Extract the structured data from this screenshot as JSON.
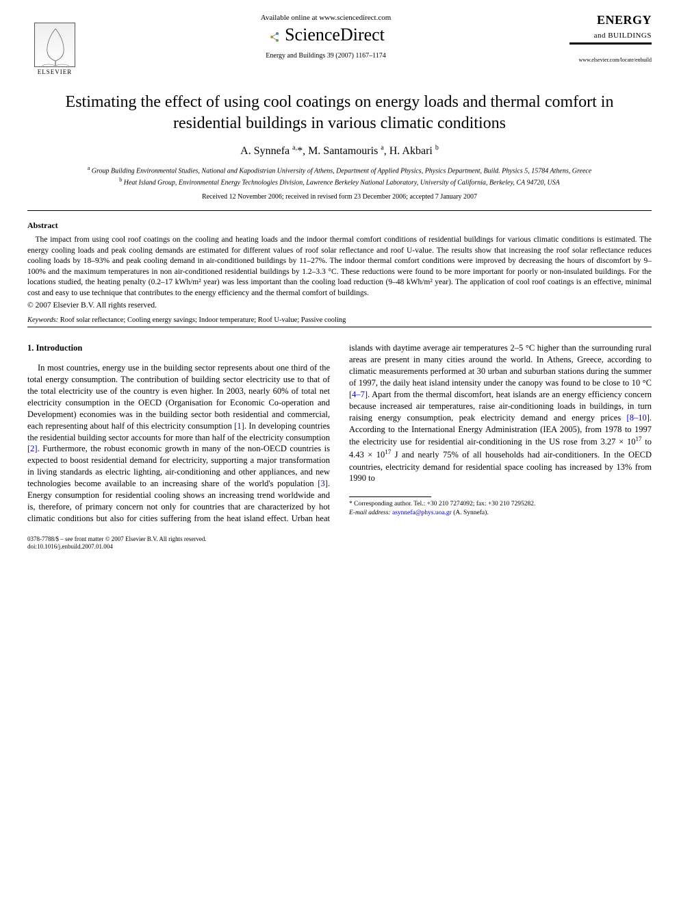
{
  "header": {
    "available_online": "Available online at www.sciencedirect.com",
    "sciencedirect": "ScienceDirect",
    "journal_ref": "Energy and Buildings 39 (2007) 1167–1174",
    "elsevier_label": "ELSEVIER",
    "journal_name_line1": "ENERGY",
    "journal_name_line2": "and BUILDINGS",
    "journal_url": "www.elsevier.com/locate/enbuild"
  },
  "title": "Estimating the effect of using cool coatings on energy loads and thermal comfort in residential buildings in various climatic conditions",
  "authors_html": "A. Synnefa <sup>a,</sup>*, M. Santamouris <sup>a</sup>, H. Akbari <sup>b</sup>",
  "affiliations": {
    "a": "Group Building Environmental Studies, National and Kapodistrian University of Athens, Department of Applied Physics, Physics Department, Build. Physics 5, 15784 Athens, Greece",
    "b": "Heat Island Group, Environmental Energy Technologies Division, Lawrence Berkeley National Laboratory, University of California, Berkeley, CA 94720, USA"
  },
  "dates": "Received 12 November 2006; received in revised form 23 December 2006; accepted 7 January 2007",
  "abstract": {
    "heading": "Abstract",
    "body": "The impact from using cool roof coatings on the cooling and heating loads and the indoor thermal comfort conditions of residential buildings for various climatic conditions is estimated. The energy cooling loads and peak cooling demands are estimated for different values of roof solar reflectance and roof U-value. The results show that increasing the roof solar reflectance reduces cooling loads by 18–93% and peak cooling demand in air-conditioned buildings by 11–27%. The indoor thermal comfort conditions were improved by decreasing the hours of discomfort by 9–100% and the maximum temperatures in non air-conditioned residential buildings by 1.2–3.3 °C. These reductions were found to be more important for poorly or non-insulated buildings. For the locations studied, the heating penalty (0.2–17 kWh/m² year) was less important than the cooling load reduction (9–48 kWh/m² year). The application of cool roof coatings is an effective, minimal cost and easy to use technique that contributes to the energy efficiency and the thermal comfort of buildings.",
    "copyright": "© 2007 Elsevier B.V. All rights reserved."
  },
  "keywords": {
    "label": "Keywords:",
    "text": "Roof solar reflectance; Cooling energy savings; Indoor temperature; Roof U-value; Passive cooling"
  },
  "section1": {
    "heading": "1. Introduction",
    "para1_a": "In most countries, energy use in the building sector represents about one third of the total energy consumption. The contribution of building sector electricity use to that of the total electricity use of the country is even higher. In 2003, nearly 60% of total net electricity consumption in the OECD (Organisation for Economic Co-operation and Development) economies was in the building sector both residential and commercial, each representing about half of this electricity consumption ",
    "ref1": "[1]",
    "para1_b": ". In developing countries the residential building sector accounts for more than half of the electricity consumption ",
    "ref2": "[2]",
    "para1_c": ". Furthermore, the robust economic growth in many of the non-OECD countries is expected to boost residential demand for electricity, supporting a major transformation in living standards as electric lighting, air-conditioning and other appliances, and new technologies become available to an increasing share of the world's population ",
    "ref3": "[3]",
    "para1_d": ". Energy consumption for residential cooling shows an increasing trend worldwide and is, therefore, of primary concern not only for countries that are characterized by hot climatic conditions but also for cities suffering from the heat island effect. Urban heat islands with daytime average air temperatures 2–5 °C higher than the surrounding rural areas are present in many cities around the world. In Athens, Greece, according to climatic measurements performed at 30 urban and suburban stations during the summer of 1997, the daily heat island intensity under the canopy was found to be close to 10 °C ",
    "ref4_7": "[4–7]",
    "para1_e": ". Apart from the thermal discomfort, heat islands are an energy efficiency concern because increased air temperatures, raise air-conditioning loads in buildings, in turn raising energy consumption, peak electricity demand and energy prices ",
    "ref8_10": "[8–10]",
    "para1_f1": ". According to the International Energy Administration (IEA 2005), from 1978 to 1997 the electricity use for residential air-conditioning in the US rose from 3.27 × 10",
    "exp17a": "17",
    "para1_f2": " to 4.43 × 10",
    "exp17b": "17",
    "para1_f3": " J and nearly 75% of all households had air-conditioners. In the OECD countries, electricity demand for residential space cooling has increased by 13% from 1990 to"
  },
  "footnotes": {
    "corr": "* Corresponding author. Tel.: +30 210 7274092; fax: +30 210 7295282.",
    "email_label": "E-mail address:",
    "email": "asynnefa@phys.uoa.gr",
    "email_who": "(A. Synnefa)."
  },
  "footer": {
    "line1": "0378-7788/$ – see front matter © 2007 Elsevier B.V. All rights reserved.",
    "line2": "doi:10.1016/j.enbuild.2007.01.004"
  },
  "colors": {
    "link": "#0000cc",
    "text": "#000000",
    "background": "#ffffff"
  }
}
